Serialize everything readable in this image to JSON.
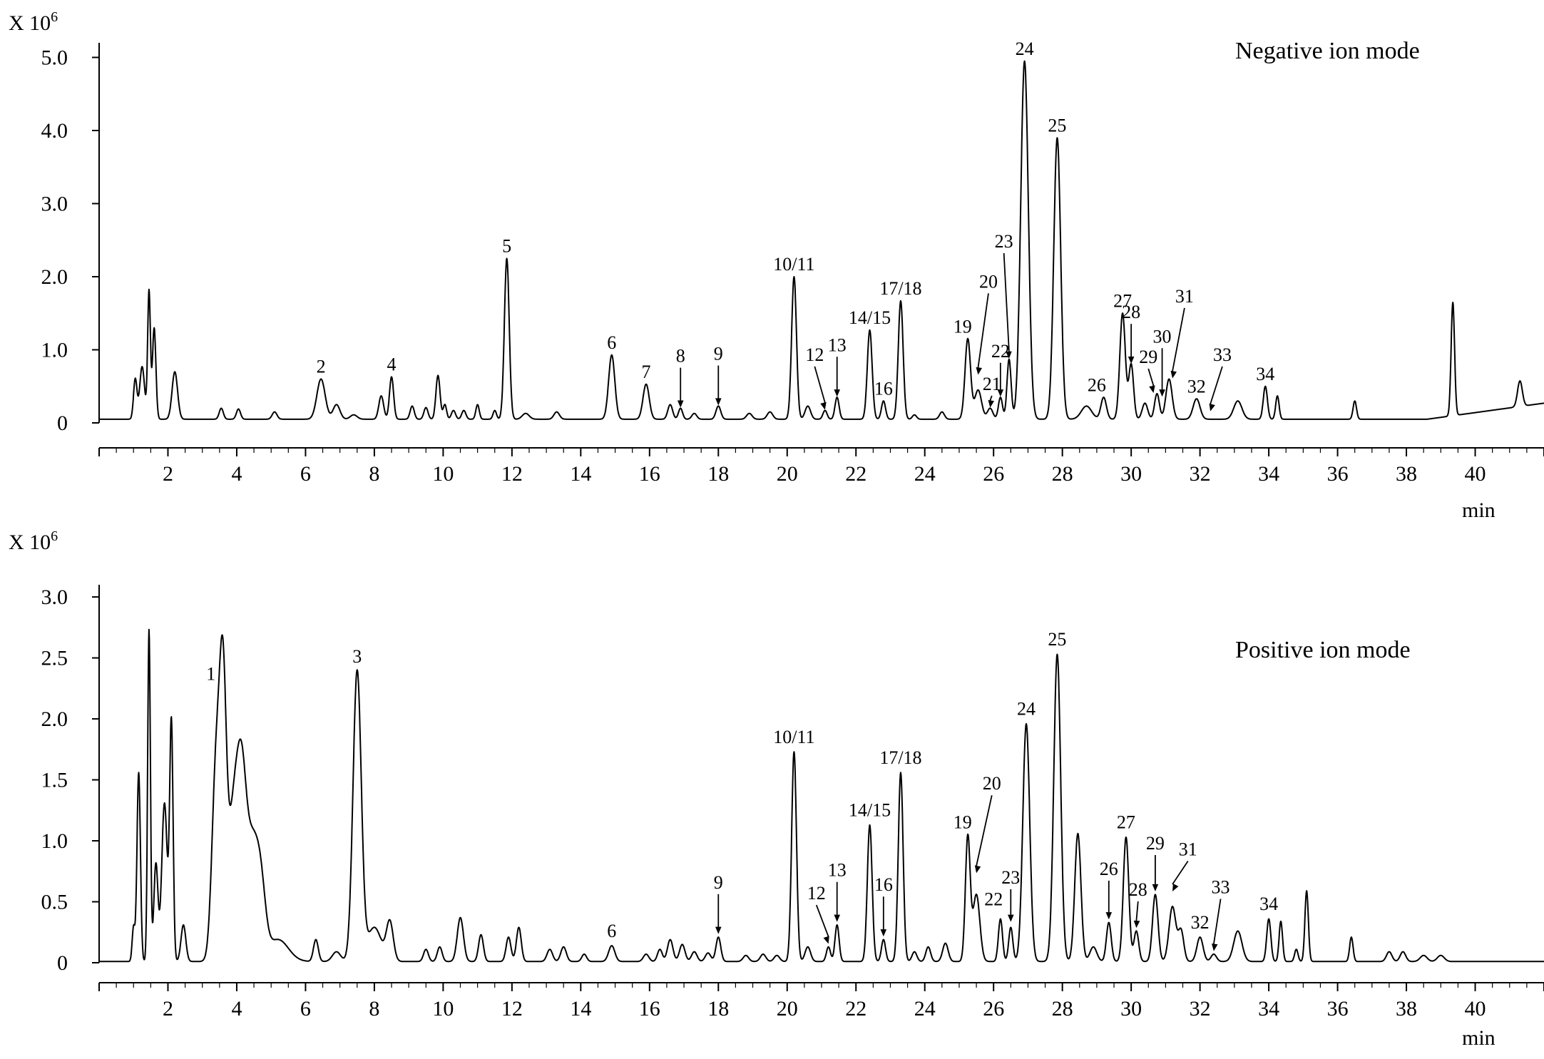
{
  "chart_data": [
    {
      "type": "line",
      "title": "Negative ion mode",
      "y_axis_label": "X 10",
      "y_axis_exponent": "6",
      "xlabel": "min",
      "xlim": [
        0,
        42
      ],
      "ylim": [
        0,
        5.2
      ],
      "x_ticks": [
        2,
        4,
        6,
        8,
        10,
        12,
        14,
        16,
        18,
        20,
        22,
        24,
        26,
        28,
        30,
        32,
        34,
        36,
        38,
        40
      ],
      "x_tick_labels": [
        "2",
        "4",
        "6",
        "8",
        "10",
        "12",
        "14",
        "16",
        "18",
        "20",
        "22",
        "24",
        "26",
        "28",
        "30",
        "32",
        "34",
        "36",
        "38",
        "40"
      ],
      "y_ticks": [
        0,
        1.0,
        2.0,
        3.0,
        4.0,
        5.0
      ],
      "y_tick_labels": [
        "0",
        "1.0",
        "2.0",
        "3.0",
        "4.0",
        "5.0"
      ],
      "baseline": 0.05,
      "peaks": [
        [
          1.05,
          0.55,
          0.05
        ],
        [
          1.25,
          0.72,
          0.07
        ],
        [
          1.45,
          1.75,
          0.04
        ],
        [
          1.6,
          1.25,
          0.05
        ],
        [
          2.2,
          0.65,
          0.08
        ],
        [
          3.55,
          0.15,
          0.06
        ],
        [
          4.05,
          0.14,
          0.06
        ],
        [
          5.1,
          0.1,
          0.07
        ],
        [
          6.45,
          0.55,
          0.12
        ],
        [
          6.9,
          0.2,
          0.1
        ],
        [
          7.4,
          0.06,
          0.1
        ],
        [
          8.2,
          0.32,
          0.07
        ],
        [
          8.5,
          0.58,
          0.06
        ],
        [
          9.1,
          0.18,
          0.06
        ],
        [
          9.5,
          0.16,
          0.06
        ],
        [
          9.85,
          0.6,
          0.06
        ],
        [
          10.05,
          0.2,
          0.05
        ],
        [
          10.3,
          0.12,
          0.06
        ],
        [
          10.6,
          0.12,
          0.06
        ],
        [
          11.0,
          0.2,
          0.05
        ],
        [
          11.5,
          0.12,
          0.05
        ],
        [
          11.85,
          2.2,
          0.07
        ],
        [
          12.4,
          0.08,
          0.1
        ],
        [
          13.3,
          0.1,
          0.08
        ],
        [
          14.9,
          0.88,
          0.09
        ],
        [
          15.9,
          0.48,
          0.09
        ],
        [
          16.6,
          0.2,
          0.07
        ],
        [
          16.9,
          0.15,
          0.06
        ],
        [
          17.3,
          0.08,
          0.07
        ],
        [
          18.0,
          0.18,
          0.07
        ],
        [
          18.9,
          0.08,
          0.08
        ],
        [
          19.5,
          0.1,
          0.08
        ],
        [
          20.2,
          1.95,
          0.07
        ],
        [
          20.6,
          0.18,
          0.08
        ],
        [
          21.1,
          0.12,
          0.06
        ],
        [
          21.45,
          0.3,
          0.06
        ],
        [
          22.4,
          1.22,
          0.07
        ],
        [
          22.8,
          0.25,
          0.06
        ],
        [
          23.3,
          1.62,
          0.07
        ],
        [
          23.7,
          0.06,
          0.06
        ],
        [
          24.5,
          0.1,
          0.07
        ],
        [
          25.25,
          1.1,
          0.08
        ],
        [
          25.55,
          0.4,
          0.1
        ],
        [
          25.9,
          0.15,
          0.08
        ],
        [
          26.2,
          0.3,
          0.06
        ],
        [
          26.45,
          0.82,
          0.06
        ],
        [
          26.9,
          4.9,
          0.11
        ],
        [
          27.85,
          3.85,
          0.1
        ],
        [
          28.7,
          0.18,
          0.15
        ],
        [
          29.2,
          0.3,
          0.08
        ],
        [
          29.75,
          1.45,
          0.08
        ],
        [
          30.0,
          0.75,
          0.07
        ],
        [
          30.4,
          0.22,
          0.08
        ],
        [
          30.75,
          0.35,
          0.07
        ],
        [
          31.1,
          0.55,
          0.09
        ],
        [
          31.9,
          0.28,
          0.1
        ],
        [
          33.1,
          0.25,
          0.12
        ],
        [
          33.9,
          0.45,
          0.06
        ],
        [
          34.25,
          0.32,
          0.05
        ],
        [
          36.5,
          0.25,
          0.05
        ],
        [
          39.35,
          1.55,
          0.05
        ],
        [
          41.3,
          0.35,
          0.07
        ]
      ],
      "ramp": {
        "from_x": 38.6,
        "to_x": 42,
        "to_y": 0.22
      },
      "annotations": [
        {
          "label": "2",
          "x": 6.45,
          "y": 0.55
        },
        {
          "label": "4",
          "x": 8.5,
          "y": 0.58
        },
        {
          "label": "5",
          "x": 11.85,
          "y": 2.2
        },
        {
          "label": "6",
          "x": 14.9,
          "y": 0.88
        },
        {
          "label": "7",
          "x": 15.9,
          "y": 0.48
        },
        {
          "label": "8",
          "x": 16.9,
          "y": 0.15,
          "arrow": true
        },
        {
          "label": "9",
          "x": 18.0,
          "y": 0.18,
          "arrow": true
        },
        {
          "label": "10/11",
          "x": 20.2,
          "y": 1.95
        },
        {
          "label": "12",
          "x": 21.1,
          "y": 0.12,
          "arrow": true,
          "lx": 20.8,
          "ly": 0.85
        },
        {
          "label": "13",
          "x": 21.45,
          "y": 0.3,
          "arrow": true
        },
        {
          "label": "14/15",
          "x": 22.4,
          "y": 1.22
        },
        {
          "label": "16",
          "x": 22.8,
          "y": 0.25
        },
        {
          "label": "17/18",
          "x": 23.3,
          "y": 1.62
        },
        {
          "label": "19",
          "x": 25.1,
          "y": 1.1
        },
        {
          "label": "20",
          "x": 25.55,
          "y": 0.6,
          "arrow": true,
          "lx": 25.85,
          "ly": 1.85
        },
        {
          "label": "21",
          "x": 25.9,
          "y": 0.15,
          "arrow": true,
          "lx": 25.95,
          "ly": 0.45
        },
        {
          "label": "22",
          "x": 26.2,
          "y": 0.3,
          "arrow": true,
          "lx": 26.2,
          "ly": 0.9
        },
        {
          "label": "23",
          "x": 26.45,
          "y": 0.82,
          "arrow": true,
          "lx": 26.3,
          "ly": 2.4
        },
        {
          "label": "24",
          "x": 26.9,
          "y": 4.9
        },
        {
          "label": "25",
          "x": 27.85,
          "y": 3.85
        },
        {
          "label": "26",
          "x": 29.0,
          "y": 0.3
        },
        {
          "label": "27",
          "x": 29.75,
          "y": 1.45
        },
        {
          "label": "28",
          "x": 30.0,
          "y": 0.75,
          "arrow": true
        },
        {
          "label": "29",
          "x": 30.65,
          "y": 0.35,
          "arrow": true,
          "lx": 30.5,
          "ly": 0.82
        },
        {
          "label": "30",
          "x": 30.9,
          "y": 0.3,
          "arrow": true,
          "lx": 30.9,
          "ly": 1.1
        },
        {
          "label": "31",
          "x": 31.2,
          "y": 0.55,
          "arrow": true,
          "lx": 31.55,
          "ly": 1.65
        },
        {
          "label": "32",
          "x": 31.9,
          "y": 0.28
        },
        {
          "label": "33",
          "x": 32.3,
          "y": 0.1,
          "arrow": true,
          "lx": 32.65,
          "ly": 0.85
        },
        {
          "label": "34",
          "x": 33.9,
          "y": 0.45
        }
      ]
    },
    {
      "type": "line",
      "title": "Positive ion mode",
      "y_axis_label": "X 10",
      "y_axis_exponent": "6",
      "xlabel": "min",
      "xlim": [
        0,
        42
      ],
      "ylim": [
        0,
        3.1
      ],
      "x_ticks": [
        2,
        4,
        6,
        8,
        10,
        12,
        14,
        16,
        18,
        20,
        22,
        24,
        26,
        28,
        30,
        32,
        34,
        36,
        38,
        40
      ],
      "x_tick_labels": [
        "2",
        "4",
        "6",
        "8",
        "10",
        "12",
        "14",
        "16",
        "18",
        "20",
        "22",
        "24",
        "26",
        "28",
        "30",
        "32",
        "34",
        "36",
        "38",
        "40"
      ],
      "y_ticks": [
        0,
        0.5,
        1.0,
        1.5,
        2.0,
        2.5,
        3.0
      ],
      "y_tick_labels": [
        "0",
        "0.5",
        "1.0",
        "1.5",
        "2.0",
        "2.5",
        "3.0"
      ],
      "baseline": 0.01,
      "peaks": [
        [
          1.0,
          0.28,
          0.04
        ],
        [
          1.15,
          1.55,
          0.05
        ],
        [
          1.45,
          2.72,
          0.04
        ],
        [
          1.65,
          0.8,
          0.06
        ],
        [
          1.9,
          1.3,
          0.08
        ],
        [
          2.1,
          1.95,
          0.05
        ],
        [
          2.45,
          0.3,
          0.07
        ],
        [
          3.4,
          1.58,
          0.12
        ],
        [
          3.6,
          2.05,
          0.1
        ],
        [
          3.9,
          1.15,
          0.16
        ],
        [
          4.15,
          1.3,
          0.14
        ],
        [
          4.45,
          0.85,
          0.16
        ],
        [
          4.7,
          0.55,
          0.14
        ],
        [
          5.2,
          0.18,
          0.3
        ],
        [
          6.3,
          0.18,
          0.07
        ],
        [
          6.9,
          0.08,
          0.12
        ],
        [
          7.5,
          2.38,
          0.12
        ],
        [
          8.0,
          0.28,
          0.2
        ],
        [
          8.45,
          0.32,
          0.1
        ],
        [
          9.5,
          0.1,
          0.07
        ],
        [
          9.9,
          0.12,
          0.07
        ],
        [
          10.5,
          0.36,
          0.09
        ],
        [
          11.1,
          0.22,
          0.07
        ],
        [
          11.9,
          0.2,
          0.07
        ],
        [
          12.2,
          0.28,
          0.07
        ],
        [
          13.1,
          0.1,
          0.08
        ],
        [
          13.5,
          0.12,
          0.08
        ],
        [
          14.1,
          0.06,
          0.07
        ],
        [
          14.9,
          0.13,
          0.09
        ],
        [
          15.9,
          0.06,
          0.08
        ],
        [
          16.3,
          0.1,
          0.07
        ],
        [
          16.6,
          0.18,
          0.08
        ],
        [
          16.95,
          0.14,
          0.08
        ],
        [
          17.3,
          0.08,
          0.08
        ],
        [
          17.7,
          0.07,
          0.08
        ],
        [
          18.0,
          0.2,
          0.07
        ],
        [
          18.8,
          0.05,
          0.08
        ],
        [
          19.3,
          0.06,
          0.08
        ],
        [
          19.7,
          0.05,
          0.08
        ],
        [
          20.2,
          1.72,
          0.07
        ],
        [
          20.6,
          0.12,
          0.08
        ],
        [
          21.2,
          0.12,
          0.06
        ],
        [
          21.45,
          0.3,
          0.06
        ],
        [
          22.4,
          1.12,
          0.07
        ],
        [
          22.8,
          0.18,
          0.06
        ],
        [
          23.3,
          1.55,
          0.07
        ],
        [
          23.7,
          0.08,
          0.07
        ],
        [
          24.1,
          0.12,
          0.07
        ],
        [
          24.6,
          0.15,
          0.08
        ],
        [
          25.25,
          1.02,
          0.07
        ],
        [
          25.5,
          0.55,
          0.1
        ],
        [
          26.2,
          0.35,
          0.06
        ],
        [
          26.5,
          0.28,
          0.06
        ],
        [
          26.95,
          1.95,
          0.1
        ],
        [
          27.85,
          2.52,
          0.1
        ],
        [
          28.45,
          1.05,
          0.09
        ],
        [
          28.9,
          0.12,
          0.1
        ],
        [
          29.35,
          0.32,
          0.07
        ],
        [
          29.85,
          1.02,
          0.08
        ],
        [
          30.15,
          0.25,
          0.07
        ],
        [
          30.7,
          0.55,
          0.08
        ],
        [
          31.2,
          0.45,
          0.1
        ],
        [
          31.45,
          0.25,
          0.08
        ],
        [
          32.0,
          0.2,
          0.09
        ],
        [
          32.4,
          0.06,
          0.08
        ],
        [
          33.1,
          0.25,
          0.12
        ],
        [
          34.0,
          0.35,
          0.06
        ],
        [
          34.35,
          0.33,
          0.05
        ],
        [
          34.8,
          0.1,
          0.05
        ],
        [
          35.1,
          0.58,
          0.05
        ],
        [
          36.4,
          0.2,
          0.05
        ],
        [
          37.5,
          0.08,
          0.08
        ],
        [
          37.9,
          0.08,
          0.08
        ],
        [
          38.5,
          0.05,
          0.1
        ],
        [
          39.0,
          0.05,
          0.1
        ]
      ],
      "annotations": [
        {
          "label": "1",
          "x": 3.6,
          "y": 2.05,
          "lx": 3.25,
          "ly": 2.25
        },
        {
          "label": "3",
          "x": 7.5,
          "y": 2.38
        },
        {
          "label": "6",
          "x": 14.9,
          "y": 0.13
        },
        {
          "label": "9",
          "x": 18.0,
          "y": 0.2,
          "arrow": true
        },
        {
          "label": "10/11",
          "x": 20.2,
          "y": 1.72
        },
        {
          "label": "12",
          "x": 21.2,
          "y": 0.12,
          "arrow": true,
          "lx": 20.85,
          "ly": 0.52
        },
        {
          "label": "13",
          "x": 21.45,
          "y": 0.3,
          "arrow": true
        },
        {
          "label": "14/15",
          "x": 22.4,
          "y": 1.12
        },
        {
          "label": "16",
          "x": 22.8,
          "y": 0.18,
          "arrow": true
        },
        {
          "label": "17/18",
          "x": 23.3,
          "y": 1.55
        },
        {
          "label": "19",
          "x": 25.1,
          "y": 1.02
        },
        {
          "label": "20",
          "x": 25.5,
          "y": 0.7,
          "arrow": true,
          "lx": 25.95,
          "ly": 1.42
        },
        {
          "label": "22",
          "x": 26.2,
          "y": 0.35,
          "lx": 26.0,
          "ly": 0.4
        },
        {
          "label": "23",
          "x": 26.5,
          "y": 0.3,
          "arrow": true,
          "lx": 26.5,
          "ly": 0.65
        },
        {
          "label": "24",
          "x": 26.95,
          "y": 1.95
        },
        {
          "label": "25",
          "x": 27.85,
          "y": 2.52
        },
        {
          "label": "26",
          "x": 29.35,
          "y": 0.32,
          "arrow": true,
          "lx": 29.35,
          "ly": 0.72
        },
        {
          "label": "27",
          "x": 29.85,
          "y": 1.02
        },
        {
          "label": "28",
          "x": 30.15,
          "y": 0.25,
          "arrow": true,
          "lx": 30.2,
          "ly": 0.55
        },
        {
          "label": "29",
          "x": 30.7,
          "y": 0.55,
          "arrow": true,
          "lx": 30.7,
          "ly": 0.93
        },
        {
          "label": "31",
          "x": 31.2,
          "y": 0.55,
          "arrow": true,
          "lx": 31.65,
          "ly": 0.88
        },
        {
          "label": "32",
          "x": 32.0,
          "y": 0.2
        },
        {
          "label": "33",
          "x": 32.4,
          "y": 0.06,
          "arrow": true,
          "lx": 32.6,
          "ly": 0.57
        },
        {
          "label": "34",
          "x": 34.0,
          "y": 0.35
        }
      ]
    }
  ]
}
